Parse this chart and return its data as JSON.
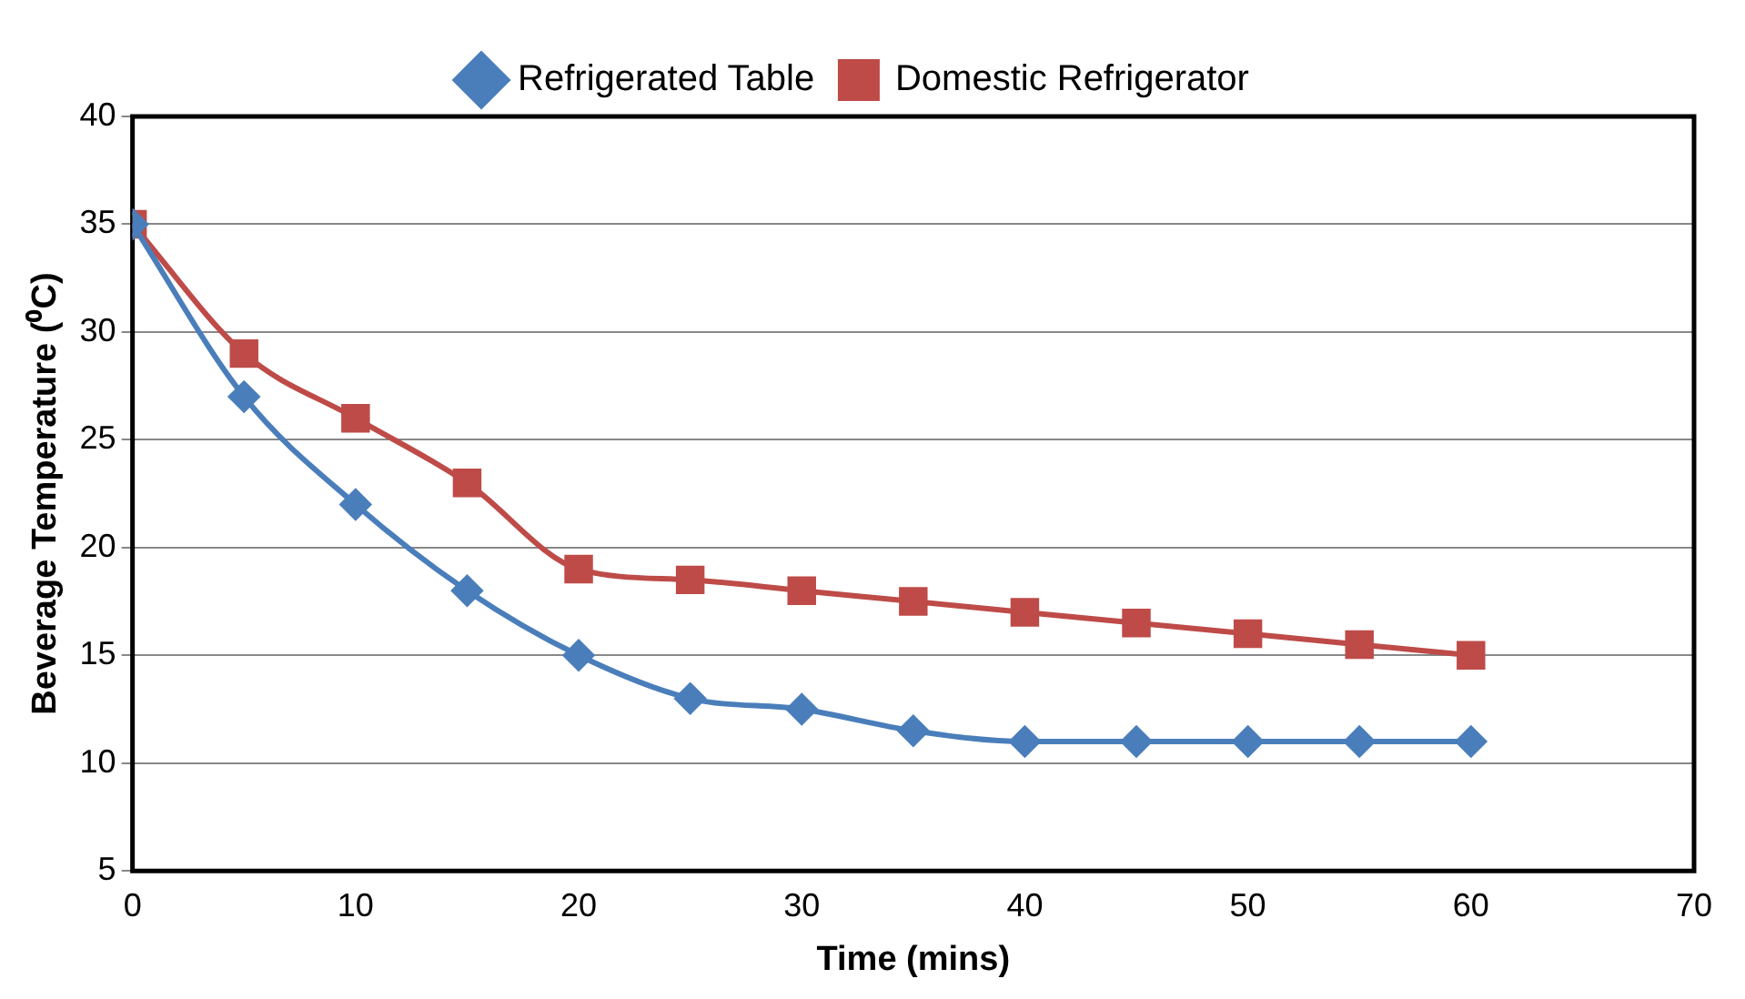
{
  "chart_data": {
    "type": "line",
    "xlabel": "Time (mins)",
    "ylabel": "Beverage Temperature (⁰C)",
    "x": [
      0,
      5,
      10,
      15,
      20,
      25,
      30,
      35,
      40,
      45,
      50,
      55,
      60
    ],
    "series": [
      {
        "name": "Refrigerated Table",
        "color": "#4a7ebb",
        "marker": "diamond",
        "values": [
          35,
          27,
          22,
          18,
          15,
          13,
          12.5,
          11.5,
          11,
          11,
          11,
          11,
          11
        ]
      },
      {
        "name": "Domestic Refrigerator",
        "color": "#be4b48",
        "marker": "square",
        "values": [
          35,
          29,
          26,
          23,
          19,
          18.5,
          18,
          17.5,
          17,
          16.5,
          16,
          15.5,
          15
        ]
      }
    ],
    "xlim": [
      0,
      70
    ],
    "xticks": [
      0,
      10,
      20,
      30,
      40,
      50,
      60,
      70
    ],
    "ylim": [
      5,
      40
    ],
    "yticks": [
      5,
      10,
      15,
      20,
      25,
      30,
      35,
      40
    ],
    "grid": "y",
    "legend": "top",
    "line_style": "solid"
  }
}
